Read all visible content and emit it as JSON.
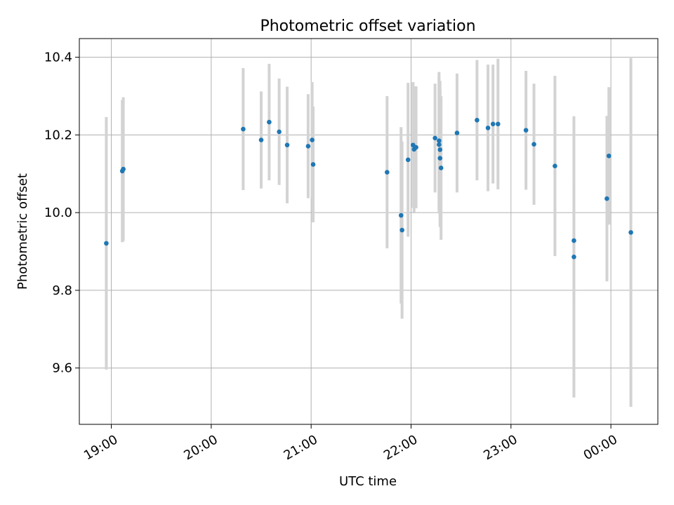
{
  "chart_data": {
    "type": "scatter",
    "title": "Photometric offset variation",
    "xlabel": "UTC time",
    "ylabel": "Photometric offset",
    "x_unit": "hours",
    "xlim": [
      18.68,
      24.47
    ],
    "ylim": [
      9.455,
      10.448
    ],
    "grid": true,
    "x_ticks": [
      {
        "value": 19,
        "label": "19:00"
      },
      {
        "value": 20,
        "label": "20:00"
      },
      {
        "value": 21,
        "label": "21:00"
      },
      {
        "value": 22,
        "label": "22:00"
      },
      {
        "value": 23,
        "label": "23:00"
      },
      {
        "value": 24,
        "label": "00:00"
      }
    ],
    "y_ticks": [
      {
        "value": 9.6,
        "label": "9.6"
      },
      {
        "value": 9.8,
        "label": "9.8"
      },
      {
        "value": 10.0,
        "label": "10.0"
      },
      {
        "value": 10.2,
        "label": "10.2"
      },
      {
        "value": 10.4,
        "label": "10.4"
      }
    ],
    "point_color": "#1f77b4",
    "errorbar_color": "#d3d3d3",
    "points": [
      {
        "x": 18.95,
        "y": 9.921,
        "yerr": 0.325
      },
      {
        "x": 19.11,
        "y": 10.107,
        "yerr": 0.183
      },
      {
        "x": 19.12,
        "y": 10.112,
        "yerr": 0.185
      },
      {
        "x": 20.32,
        "y": 10.215,
        "yerr": 0.157
      },
      {
        "x": 20.5,
        "y": 10.187,
        "yerr": 0.125
      },
      {
        "x": 20.58,
        "y": 10.233,
        "yerr": 0.15
      },
      {
        "x": 20.68,
        "y": 10.208,
        "yerr": 0.137
      },
      {
        "x": 20.76,
        "y": 10.174,
        "yerr": 0.15
      },
      {
        "x": 20.97,
        "y": 10.171,
        "yerr": 0.134
      },
      {
        "x": 21.01,
        "y": 10.187,
        "yerr": 0.149
      },
      {
        "x": 21.02,
        "y": 10.124,
        "yerr": 0.149
      },
      {
        "x": 21.76,
        "y": 10.104,
        "yerr": 0.196
      },
      {
        "x": 21.9,
        "y": 9.993,
        "yerr": 0.227
      },
      {
        "x": 21.91,
        "y": 9.955,
        "yerr": 0.228
      },
      {
        "x": 21.97,
        "y": 10.136,
        "yerr": 0.198
      },
      {
        "x": 22.02,
        "y": 10.174,
        "yerr": 0.162
      },
      {
        "x": 22.03,
        "y": 10.163,
        "yerr": 0.162
      },
      {
        "x": 22.05,
        "y": 10.168,
        "yerr": 0.157
      },
      {
        "x": 22.24,
        "y": 10.192,
        "yerr": 0.14
      },
      {
        "x": 22.28,
        "y": 10.185,
        "yerr": 0.177
      },
      {
        "x": 22.28,
        "y": 10.175,
        "yerr": 0.177
      },
      {
        "x": 22.29,
        "y": 10.162,
        "yerr": 0.177
      },
      {
        "x": 22.29,
        "y": 10.14,
        "yerr": 0.177
      },
      {
        "x": 22.3,
        "y": 10.115,
        "yerr": 0.185
      },
      {
        "x": 22.46,
        "y": 10.205,
        "yerr": 0.153
      },
      {
        "x": 22.66,
        "y": 10.238,
        "yerr": 0.155
      },
      {
        "x": 22.77,
        "y": 10.218,
        "yerr": 0.163
      },
      {
        "x": 22.82,
        "y": 10.228,
        "yerr": 0.153
      },
      {
        "x": 22.87,
        "y": 10.228,
        "yerr": 0.168
      },
      {
        "x": 23.15,
        "y": 10.212,
        "yerr": 0.153
      },
      {
        "x": 23.23,
        "y": 10.176,
        "yerr": 0.156
      },
      {
        "x": 23.44,
        "y": 10.12,
        "yerr": 0.232
      },
      {
        "x": 23.63,
        "y": 9.928,
        "yerr": 0.155
      },
      {
        "x": 23.63,
        "y": 9.886,
        "yerr": 0.362
      },
      {
        "x": 23.96,
        "y": 10.036,
        "yerr": 0.213
      },
      {
        "x": 23.98,
        "y": 10.146,
        "yerr": 0.177
      },
      {
        "x": 24.2,
        "y": 9.949,
        "yerr": 0.449
      }
    ]
  }
}
